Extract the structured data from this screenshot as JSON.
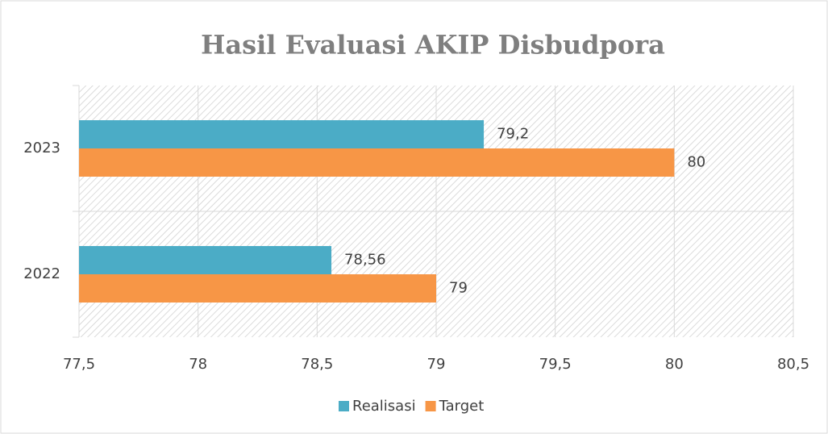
{
  "chart_data": {
    "type": "bar",
    "orientation": "horizontal",
    "title": "Hasil Evaluasi AKIP Disbudpora",
    "categories": [
      "2023",
      "2022"
    ],
    "series": [
      {
        "name": "Realisasi",
        "color": "#4bacc6",
        "values": [
          79.2,
          78.56
        ],
        "value_labels": [
          "79,2",
          "78,56"
        ]
      },
      {
        "name": "Target",
        "color": "#f79646",
        "values": [
          80,
          79
        ]
      }
    ],
    "xlim": [
      77.5,
      80.5
    ],
    "xticks": [
      {
        "value": 77.5,
        "label": "77,5"
      },
      78,
      {
        "value": 78.5,
        "label": "78,5"
      },
      79,
      {
        "value": 79.5,
        "label": "79,5"
      },
      80,
      {
        "value": 80.5,
        "label": "80,5"
      }
    ],
    "grid": true,
    "legend": "bottom"
  }
}
